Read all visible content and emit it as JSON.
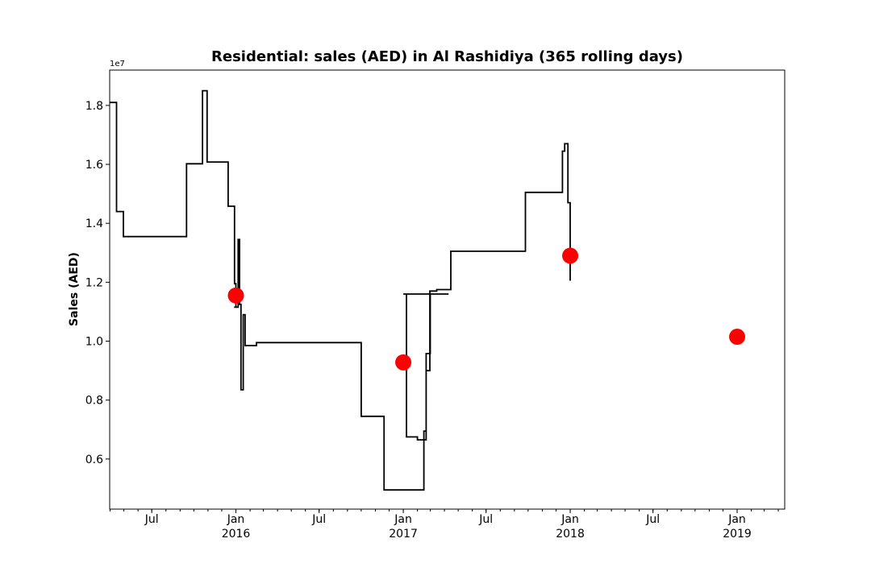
{
  "chart_data": {
    "type": "line",
    "title": "Residential: sales (AED) in Al Rashidiya (365 rolling days)",
    "xlabel": "",
    "ylabel": "Sales (AED)",
    "y_offset_label": "1e7",
    "y_scale": 10000000,
    "xlim": [
      "2015-03-31",
      "2019-04-15"
    ],
    "ylim": [
      4300000,
      19200000
    ],
    "x_ticks": [
      {
        "date": "2015-07-01",
        "label": "Jul",
        "year": ""
      },
      {
        "date": "2016-01-01",
        "label": "Jan",
        "year": "2016"
      },
      {
        "date": "2016-07-01",
        "label": "Jul",
        "year": ""
      },
      {
        "date": "2017-01-01",
        "label": "Jan",
        "year": "2017"
      },
      {
        "date": "2017-07-01",
        "label": "Jul",
        "year": ""
      },
      {
        "date": "2018-01-01",
        "label": "Jan",
        "year": "2018"
      },
      {
        "date": "2018-07-01",
        "label": "Jul",
        "year": ""
      },
      {
        "date": "2019-01-01",
        "label": "Jan",
        "year": "2019"
      }
    ],
    "y_ticks": [
      {
        "value": 6000000,
        "label": "0.6"
      },
      {
        "value": 8000000,
        "label": "0.8"
      },
      {
        "value": 10000000,
        "label": "1.0"
      },
      {
        "value": 12000000,
        "label": "1.2"
      },
      {
        "value": 14000000,
        "label": "1.4"
      },
      {
        "value": 16000000,
        "label": "1.6"
      },
      {
        "value": 18000000,
        "label": "1.8"
      }
    ],
    "series": [
      {
        "color": "#000000",
        "style": "step",
        "points": [
          [
            "2015-03-31",
            18100000
          ],
          [
            "2015-04-15",
            14400000
          ],
          [
            "2015-04-30",
            13550000
          ],
          [
            "2015-09-15",
            16020000
          ],
          [
            "2015-10-20",
            18500000
          ],
          [
            "2015-10-30",
            16080000
          ],
          [
            "2015-12-15",
            14580000
          ],
          [
            "2015-12-29",
            11950000
          ],
          [
            "2016-01-01",
            11150000
          ],
          [
            "2015-12-28",
            11150000
          ],
          [
            "2016-01-06",
            13450000
          ],
          [
            "2016-01-09",
            11250000
          ],
          [
            "2016-01-12",
            8350000
          ],
          [
            "2016-01-17",
            10900000
          ],
          [
            "2016-01-21",
            9850000
          ],
          [
            "2016-02-15",
            9950000
          ],
          [
            "2016-10-01",
            7450000
          ],
          [
            "2016-11-20",
            4950000
          ],
          [
            "2017-02-15",
            6950000
          ],
          [
            "2017-02-20",
            9580000
          ],
          [
            "2017-03-01",
            11600000
          ],
          [
            "2017-03-15",
            11600000
          ],
          [
            "2017-04-10",
            11600000
          ],
          [
            "2017-01-01",
            11600000
          ],
          [
            "2017-01-08",
            6750000
          ],
          [
            "2017-02-01",
            6650000
          ],
          [
            "2017-02-20",
            9000000
          ],
          [
            "2017-02-28",
            11700000
          ],
          [
            "2017-03-15",
            11750000
          ],
          [
            "2017-04-15",
            13050000
          ],
          [
            "2017-09-25",
            15050000
          ],
          [
            "2017-12-15",
            16450000
          ],
          [
            "2017-12-20",
            16700000
          ],
          [
            "2017-12-27",
            14700000
          ],
          [
            "2018-01-01",
            12050000
          ]
        ],
        "note": ""
      }
    ],
    "markers": {
      "color": "#ff0000",
      "points": [
        [
          "2016-01-01",
          11550000
        ],
        [
          "2017-01-01",
          9280000
        ],
        [
          "2018-01-01",
          12900000
        ],
        [
          "2019-01-01",
          10150000
        ]
      ]
    }
  }
}
